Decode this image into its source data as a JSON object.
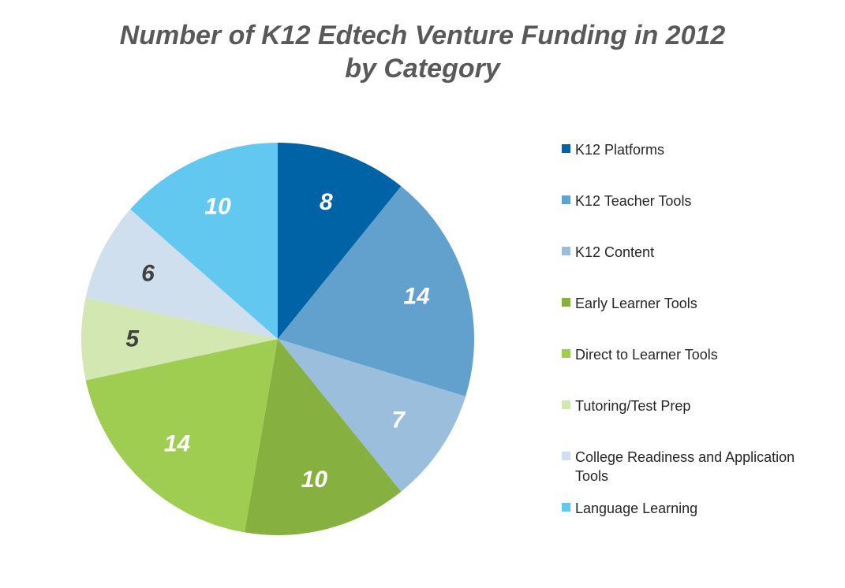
{
  "chart_data": {
    "type": "pie",
    "title": [
      "Number of K12 Edtech Venture Funding in 2012",
      "by Category"
    ],
    "categories": [
      "K12 Platforms",
      "K12 Teacher Tools",
      "K12 Content",
      "Early Learner Tools",
      "Direct to Learner Tools",
      "Tutoring/Test Prep",
      "College Readiness and Application Tools",
      "Language Learning"
    ],
    "values": [
      8,
      14,
      7,
      10,
      14,
      5,
      6,
      10
    ],
    "data_labels": [
      "8",
      "14",
      "7",
      "10",
      "14",
      "5",
      "6",
      "10"
    ],
    "colors": [
      "#0063A6",
      "#62A0CD",
      "#9BBEDD",
      "#86B140",
      "#9ECD52",
      "#D2E7B2",
      "#CFDFED",
      "#62C8F0"
    ],
    "label_colors": [
      "#FFFFFF",
      "#FFFFFF",
      "#FFFFFF",
      "#FFFFFF",
      "#FFFFFF",
      "#404040",
      "#404040",
      "#FFFFFF"
    ],
    "legend_position": "right",
    "start_angle": "12 o'clock",
    "direction": "clockwise"
  }
}
